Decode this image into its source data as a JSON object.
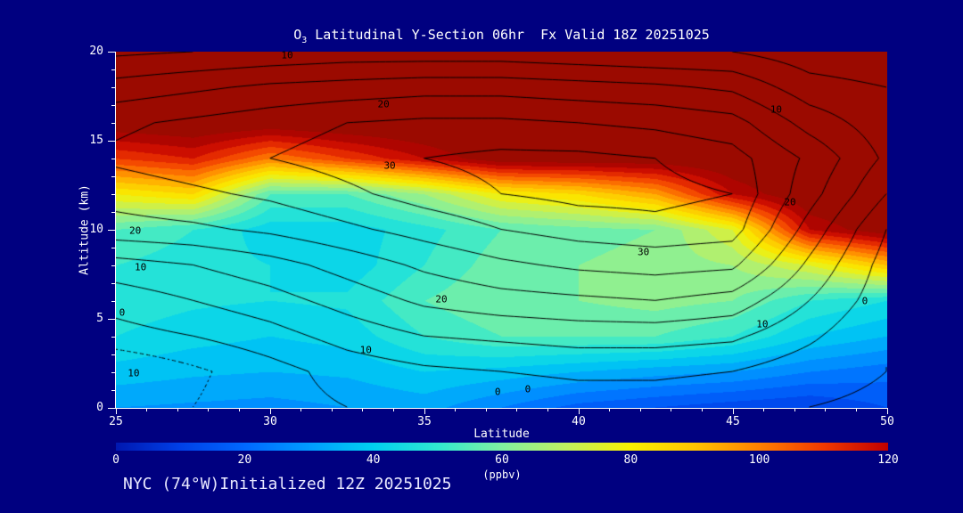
{
  "title": {
    "prefix": "O",
    "subscript": "3",
    "rest": " Latitudinal Y-Section 06hr  Fx Valid 18Z 20251025"
  },
  "footer": "NYC (74°W)Initialized 12Z 20251025",
  "axes": {
    "x": {
      "label": "Latitude",
      "min": 25,
      "max": 50,
      "major_ticks": [
        25,
        30,
        35,
        40,
        45,
        50
      ],
      "minor_step": 1
    },
    "y": {
      "label": "Altitude (km)",
      "min": 0,
      "max": 20,
      "major_ticks": [
        0,
        5,
        10,
        15,
        20
      ],
      "minor_step": 1
    }
  },
  "colorbar": {
    "label": "(ppbv)",
    "min": 0,
    "max": 120,
    "ticks": [
      0,
      20,
      40,
      60,
      80,
      100,
      120
    ]
  },
  "colors": {
    "background": "#000080",
    "text": "#ffffff",
    "axis": "#ffffff",
    "contour_line": "#000000"
  },
  "chart_data": {
    "type": "heatmap",
    "title": "O3 Latitudinal Y-Section 06hr Fx Valid 18Z 20251025",
    "xlabel": "Latitude",
    "ylabel": "Altitude (km)",
    "units": "ppbv",
    "xlim": [
      25,
      50
    ],
    "ylim": [
      0,
      20
    ],
    "colorbar_range": [
      0,
      120
    ],
    "grid": false,
    "legend_position": "bottom-colorbar",
    "x_lat": [
      25,
      27.5,
      30,
      32.5,
      35,
      37.5,
      40,
      42.5,
      45,
      47.5,
      50
    ],
    "y_alt_km": [
      0,
      2,
      4,
      6,
      8,
      10,
      12,
      14,
      16,
      18,
      20
    ],
    "ozone_ppbv": [
      [
        30,
        29,
        28,
        30,
        32,
        25,
        18,
        15,
        12,
        10,
        15
      ],
      [
        38,
        36,
        35,
        36,
        40,
        38,
        35,
        32,
        30,
        25,
        22
      ],
      [
        45,
        42,
        40,
        42,
        50,
        55,
        55,
        55,
        50,
        40,
        35
      ],
      [
        48,
        46,
        45,
        46,
        55,
        60,
        60,
        62,
        60,
        50,
        45
      ],
      [
        50,
        47,
        45,
        42,
        50,
        58,
        60,
        62,
        65,
        75,
        90
      ],
      [
        55,
        50,
        42,
        42,
        48,
        55,
        58,
        60,
        75,
        120,
        130
      ],
      [
        80,
        85,
        55,
        55,
        65,
        80,
        85,
        95,
        120,
        132,
        135
      ],
      [
        110,
        115,
        100,
        110,
        120,
        130,
        130,
        130,
        132,
        135,
        138
      ],
      [
        130,
        132,
        130,
        132,
        133,
        134,
        135,
        135,
        136,
        138,
        140
      ],
      [
        133,
        134,
        133,
        134,
        135,
        136,
        137,
        137,
        138,
        140,
        140
      ],
      [
        135,
        136,
        135,
        136,
        137,
        138,
        139,
        139,
        140,
        140,
        140
      ]
    ],
    "fill_levels_step": 5,
    "colormap_stops": [
      {
        "value": 0,
        "color": "#0018b0"
      },
      {
        "value": 10,
        "color": "#0040e8"
      },
      {
        "value": 20,
        "color": "#0068ff"
      },
      {
        "value": 30,
        "color": "#009cff"
      },
      {
        "value": 40,
        "color": "#00d0f0"
      },
      {
        "value": 50,
        "color": "#30e8d0"
      },
      {
        "value": 60,
        "color": "#80f0a0"
      },
      {
        "value": 70,
        "color": "#c0f060"
      },
      {
        "value": 80,
        "color": "#f8f000"
      },
      {
        "value": 90,
        "color": "#ffc400"
      },
      {
        "value": 100,
        "color": "#ff8000"
      },
      {
        "value": 110,
        "color": "#f03800"
      },
      {
        "value": 120,
        "color": "#c00000"
      },
      {
        "value": 125,
        "color": "#9b0a00"
      },
      {
        "value": 140,
        "color": "#9b0a00"
      }
    ],
    "overlay_contours": {
      "levels": [
        -10,
        -5,
        0,
        5,
        10,
        15,
        20,
        25,
        30,
        34
      ],
      "negative_style": "dotted",
      "values": [
        [
          -8,
          -5,
          -2,
          0,
          0,
          1,
          2,
          2,
          1,
          0,
          -1
        ],
        [
          -10,
          -6,
          -2,
          2,
          4,
          5,
          6,
          6,
          5,
          2,
          0
        ],
        [
          -2,
          0,
          3,
          7,
          10,
          11,
          12,
          12,
          11,
          6,
          0
        ],
        [
          2,
          5,
          8,
          12,
          16,
          18,
          19,
          20,
          18,
          10,
          2
        ],
        [
          8,
          10,
          13,
          17,
          21,
          24,
          26,
          27,
          26,
          14,
          3
        ],
        [
          18,
          19,
          21,
          24,
          27,
          30,
          32,
          33,
          32,
          18,
          5
        ],
        [
          22,
          24,
          26,
          29,
          32,
          34,
          35,
          35,
          34,
          22,
          10
        ],
        [
          26,
          28,
          30,
          32,
          34,
          35,
          35,
          34,
          32,
          24,
          14
        ],
        [
          24,
          26,
          28,
          30,
          31,
          31,
          30,
          29,
          27,
          18,
          12
        ],
        [
          17,
          19,
          21,
          22,
          23,
          23,
          22,
          21,
          19,
          12,
          10
        ],
        [
          9,
          10,
          11,
          12,
          12,
          12,
          11,
          10,
          10,
          7,
          6
        ]
      ],
      "labels": [
        {
          "text": "10",
          "fx": 0.222,
          "fy": 0.01
        },
        {
          "text": "20",
          "fx": 0.347,
          "fy": 0.148
        },
        {
          "text": "30",
          "fx": 0.355,
          "fy": 0.32
        },
        {
          "text": "10",
          "fx": 0.856,
          "fy": 0.163
        },
        {
          "text": "20",
          "fx": 0.874,
          "fy": 0.423
        },
        {
          "text": "20",
          "fx": 0.025,
          "fy": 0.503
        },
        {
          "text": "10",
          "fx": 0.032,
          "fy": 0.605
        },
        {
          "text": "0",
          "fx": 0.008,
          "fy": 0.733
        },
        {
          "text": "10",
          "fx": 0.023,
          "fy": 0.903
        },
        {
          "text": "30",
          "fx": 0.684,
          "fy": 0.563
        },
        {
          "text": "20",
          "fx": 0.422,
          "fy": 0.695
        },
        {
          "text": "10",
          "fx": 0.324,
          "fy": 0.838
        },
        {
          "text": "10",
          "fx": 0.838,
          "fy": 0.765
        },
        {
          "text": "0",
          "fx": 0.495,
          "fy": 0.955
        },
        {
          "text": "0",
          "fx": 0.534,
          "fy": 0.948
        },
        {
          "text": "0",
          "fx": 0.971,
          "fy": 0.7
        }
      ]
    }
  }
}
